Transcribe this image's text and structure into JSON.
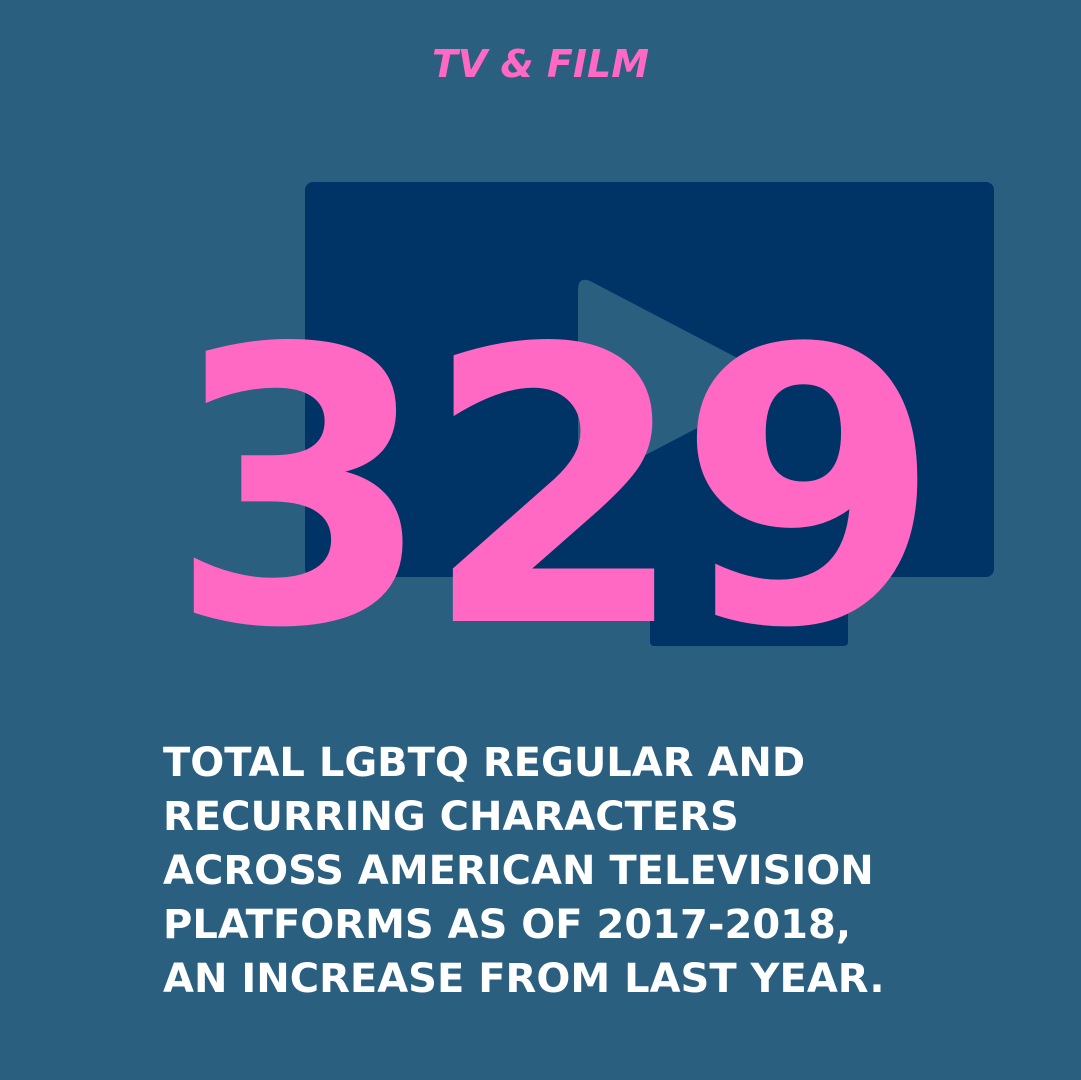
{
  "header": {
    "title": "TV & FILM"
  },
  "stat": {
    "value": "329"
  },
  "caption": {
    "lines": [
      "TOTAL LGBTQ REGULAR AND",
      "RECURRING CHARACTERS",
      "ACROSS AMERICAN TELEVISION",
      "PLATFORMS AS OF 2017-2018,",
      "AN INCREASE FROM LAST YEAR."
    ]
  }
}
